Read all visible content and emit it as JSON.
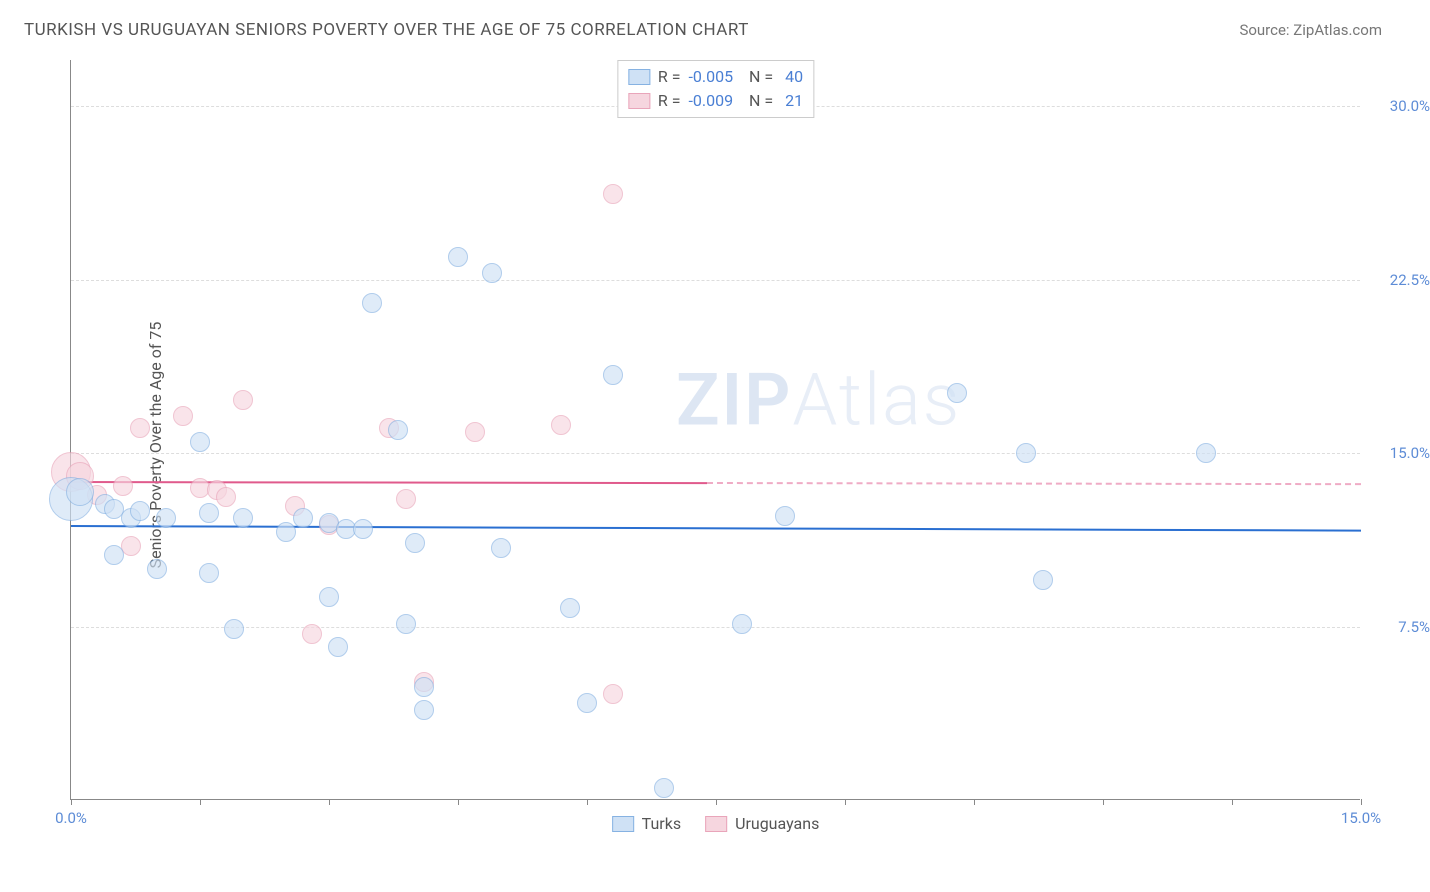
{
  "header": {
    "title": "TURKISH VS URUGUAYAN SENIORS POVERTY OVER THE AGE OF 75 CORRELATION CHART",
    "source_label": "Source: ",
    "source_value": "ZipAtlas.com"
  },
  "chart": {
    "type": "scatter",
    "yaxis_title": "Seniors Poverty Over the Age of 75",
    "ylim": [
      0,
      32
    ],
    "xlim": [
      0,
      15
    ],
    "yticks": [
      {
        "v": 7.5,
        "label": "7.5%",
        "color": "#5d8cd6"
      },
      {
        "v": 15.0,
        "label": "15.0%",
        "color": "#5d8cd6"
      },
      {
        "v": 22.5,
        "label": "22.5%",
        "color": "#5d8cd6"
      },
      {
        "v": 30.0,
        "label": "30.0%",
        "color": "#5d8cd6"
      }
    ],
    "xticks": [
      0,
      1.5,
      3.0,
      4.5,
      6.0,
      7.5,
      9.0,
      10.5,
      12.0,
      13.5,
      15.0
    ],
    "xlabel_left": {
      "v": 0.0,
      "label": "0.0%",
      "color": "#5d8cd6"
    },
    "xlabel_right": {
      "v": 15.0,
      "label": "15.0%",
      "color": "#5d8cd6"
    },
    "background_color": "#ffffff",
    "grid_color": "#dddddd",
    "axis_color": "#888888",
    "series": {
      "turks": {
        "label": "Turks",
        "fill": "#cfe1f5",
        "stroke": "#86b2e2",
        "fill_opacity": 0.65,
        "R": "-0.005",
        "N": "40",
        "trend": {
          "y1": 11.9,
          "y2": 11.7,
          "x1": 0,
          "x2": 15.0,
          "solid_until": 15.0,
          "color": "#2a6fd1"
        },
        "points": [
          {
            "x": 0.0,
            "y": 13.0,
            "r": 22
          },
          {
            "x": 0.1,
            "y": 13.3,
            "r": 14
          },
          {
            "x": 0.4,
            "y": 12.8,
            "r": 10
          },
          {
            "x": 0.5,
            "y": 12.6,
            "r": 10
          },
          {
            "x": 0.7,
            "y": 12.2,
            "r": 10
          },
          {
            "x": 0.5,
            "y": 10.6,
            "r": 10
          },
          {
            "x": 1.1,
            "y": 12.2,
            "r": 10
          },
          {
            "x": 1.0,
            "y": 10.0,
            "r": 10
          },
          {
            "x": 1.5,
            "y": 15.5,
            "r": 10
          },
          {
            "x": 1.6,
            "y": 12.4,
            "r": 10
          },
          {
            "x": 1.6,
            "y": 9.8,
            "r": 10
          },
          {
            "x": 2.0,
            "y": 12.2,
            "r": 10
          },
          {
            "x": 1.9,
            "y": 7.4,
            "r": 10
          },
          {
            "x": 2.5,
            "y": 11.6,
            "r": 10
          },
          {
            "x": 2.7,
            "y": 12.2,
            "r": 10
          },
          {
            "x": 3.0,
            "y": 12.0,
            "r": 10
          },
          {
            "x": 3.0,
            "y": 8.8,
            "r": 10
          },
          {
            "x": 3.2,
            "y": 11.7,
            "r": 10
          },
          {
            "x": 3.1,
            "y": 6.6,
            "r": 10
          },
          {
            "x": 3.4,
            "y": 11.7,
            "r": 10
          },
          {
            "x": 3.5,
            "y": 21.5,
            "r": 10
          },
          {
            "x": 3.8,
            "y": 16.0,
            "r": 10
          },
          {
            "x": 3.9,
            "y": 7.6,
            "r": 10
          },
          {
            "x": 4.0,
            "y": 11.1,
            "r": 10
          },
          {
            "x": 4.1,
            "y": 4.9,
            "r": 10
          },
          {
            "x": 4.1,
            "y": 3.9,
            "r": 10
          },
          {
            "x": 4.5,
            "y": 23.5,
            "r": 10
          },
          {
            "x": 4.9,
            "y": 22.8,
            "r": 10
          },
          {
            "x": 5.0,
            "y": 10.9,
            "r": 10
          },
          {
            "x": 5.8,
            "y": 8.3,
            "r": 10
          },
          {
            "x": 6.0,
            "y": 4.2,
            "r": 10
          },
          {
            "x": 6.3,
            "y": 18.4,
            "r": 10
          },
          {
            "x": 6.9,
            "y": 0.5,
            "r": 10
          },
          {
            "x": 7.8,
            "y": 7.6,
            "r": 10
          },
          {
            "x": 8.3,
            "y": 12.3,
            "r": 10
          },
          {
            "x": 10.3,
            "y": 17.6,
            "r": 10
          },
          {
            "x": 11.1,
            "y": 15.0,
            "r": 10
          },
          {
            "x": 11.3,
            "y": 9.5,
            "r": 10
          },
          {
            "x": 13.2,
            "y": 15.0,
            "r": 10
          },
          {
            "x": 0.8,
            "y": 12.5,
            "r": 10
          }
        ]
      },
      "uruguayans": {
        "label": "Uruguayans",
        "fill": "#f6d6df",
        "stroke": "#e9a5ba",
        "fill_opacity": 0.65,
        "R": "-0.009",
        "N": "21",
        "trend": {
          "y1": 13.8,
          "y2": 13.7,
          "x1": 0,
          "x2": 15.0,
          "solid_until": 7.4,
          "color": "#e05a8c"
        },
        "points": [
          {
            "x": 0.0,
            "y": 14.2,
            "r": 20
          },
          {
            "x": 0.1,
            "y": 14.0,
            "r": 14
          },
          {
            "x": 0.3,
            "y": 13.2,
            "r": 10
          },
          {
            "x": 0.6,
            "y": 13.6,
            "r": 10
          },
          {
            "x": 0.8,
            "y": 16.1,
            "r": 10
          },
          {
            "x": 0.7,
            "y": 11.0,
            "r": 10
          },
          {
            "x": 1.3,
            "y": 16.6,
            "r": 10
          },
          {
            "x": 1.5,
            "y": 13.5,
            "r": 10
          },
          {
            "x": 1.7,
            "y": 13.4,
            "r": 10
          },
          {
            "x": 1.8,
            "y": 13.1,
            "r": 10
          },
          {
            "x": 2.0,
            "y": 17.3,
            "r": 10
          },
          {
            "x": 2.6,
            "y": 12.7,
            "r": 10
          },
          {
            "x": 2.8,
            "y": 7.2,
            "r": 10
          },
          {
            "x": 3.0,
            "y": 11.9,
            "r": 10
          },
          {
            "x": 3.7,
            "y": 16.1,
            "r": 10
          },
          {
            "x": 3.9,
            "y": 13.0,
            "r": 10
          },
          {
            "x": 4.1,
            "y": 5.1,
            "r": 10
          },
          {
            "x": 4.7,
            "y": 15.9,
            "r": 10
          },
          {
            "x": 5.7,
            "y": 16.2,
            "r": 10
          },
          {
            "x": 6.3,
            "y": 26.2,
            "r": 10
          },
          {
            "x": 6.3,
            "y": 4.6,
            "r": 10
          }
        ]
      }
    },
    "watermark": {
      "zip": "ZIP",
      "atlas": "Atlas"
    },
    "stats_legend_labels": {
      "R": "R =",
      "N": "N ="
    },
    "tick_label_fontsize": 15,
    "axis_title_fontsize": 16
  }
}
